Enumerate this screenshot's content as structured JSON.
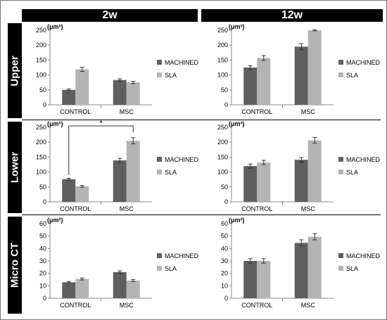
{
  "columns": [
    "2w",
    "12w"
  ],
  "rows": [
    "Upper",
    "Lower",
    "Micro CT"
  ],
  "colors": {
    "machined": "#5f5f5f",
    "sla": "#b4b4b4",
    "tab": "#000000"
  },
  "chart_data": [
    {
      "type": "bar",
      "column": "2w",
      "row": "Upper",
      "unit": "(μm²)",
      "categories": [
        "CONTROL",
        "MSC"
      ],
      "series": [
        {
          "name": "MACHINED",
          "values": [
            50,
            83
          ],
          "errors": [
            3,
            4
          ]
        },
        {
          "name": "SLA",
          "values": [
            119,
            75
          ],
          "errors": [
            7,
            4
          ]
        }
      ],
      "ylim": [
        0,
        250
      ],
      "yticks": [
        0,
        50,
        100,
        150,
        200,
        250
      ]
    },
    {
      "type": "bar",
      "column": "12w",
      "row": "Upper",
      "unit": "(μm²)",
      "categories": [
        "CONTROL",
        "MSC"
      ],
      "series": [
        {
          "name": "MACHINED",
          "values": [
            125,
            195
          ],
          "errors": [
            6,
            10
          ]
        },
        {
          "name": "SLA",
          "values": [
            157,
            250
          ],
          "errors": [
            8,
            2
          ]
        }
      ],
      "ylim": [
        0,
        250
      ],
      "yticks": [
        0,
        50,
        100,
        150,
        200,
        250
      ]
    },
    {
      "type": "bar",
      "column": "2w",
      "row": "Lower",
      "unit": "(μm²)",
      "categories": [
        "CONTROL",
        "MSC"
      ],
      "series": [
        {
          "name": "MACHINED",
          "values": [
            76,
            139
          ],
          "errors": [
            3,
            7
          ]
        },
        {
          "name": "SLA",
          "values": [
            52,
            205
          ],
          "errors": [
            3,
            10
          ]
        }
      ],
      "ylim": [
        0,
        250
      ],
      "yticks": [
        0,
        50,
        100,
        150,
        200,
        250
      ],
      "annotation": "*"
    },
    {
      "type": "bar",
      "column": "12w",
      "row": "Lower",
      "unit": "(μm²)",
      "categories": [
        "CONTROL",
        "MSC"
      ],
      "series": [
        {
          "name": "MACHINED",
          "values": [
            120,
            141
          ],
          "errors": [
            7,
            8
          ]
        },
        {
          "name": "SLA",
          "values": [
            132,
            206
          ],
          "errors": [
            7,
            10
          ]
        }
      ],
      "ylim": [
        0,
        250
      ],
      "yticks": [
        0,
        50,
        100,
        150,
        200,
        250
      ]
    },
    {
      "type": "bar",
      "column": "2w",
      "row": "Micro CT",
      "unit": "(μm²)",
      "categories": [
        "CONTROL",
        "MSC"
      ],
      "series": [
        {
          "name": "MACHINED",
          "values": [
            12.8,
            21
          ],
          "errors": [
            0.7,
            1
          ]
        },
        {
          "name": "SLA",
          "values": [
            15.5,
            14.2
          ],
          "errors": [
            0.8,
            0.8
          ]
        }
      ],
      "ylim": [
        0,
        60
      ],
      "yticks": [
        0,
        10,
        20,
        30,
        40,
        50,
        60
      ]
    },
    {
      "type": "bar",
      "column": "12w",
      "row": "Micro CT",
      "unit": "(μm²)",
      "categories": [
        "CONTROL",
        "MSC"
      ],
      "series": [
        {
          "name": "MACHINED",
          "values": [
            30,
            44.5
          ],
          "errors": [
            1.8,
            2.5
          ]
        },
        {
          "name": "SLA",
          "values": [
            30,
            49.5
          ],
          "errors": [
            1.8,
            2.5
          ]
        }
      ],
      "ylim": [
        0,
        60
      ],
      "yticks": [
        0,
        10,
        20,
        30,
        40,
        50,
        60
      ]
    }
  ]
}
